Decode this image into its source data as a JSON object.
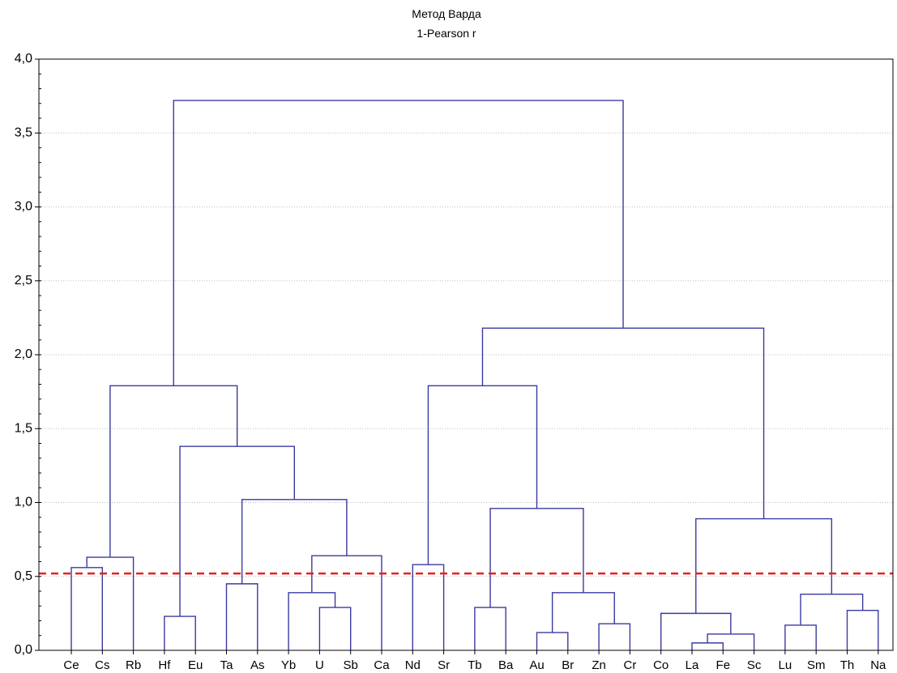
{
  "chart_data": {
    "type": "dendrogram",
    "title": "Метод Варда",
    "subtitle": "1-Pearson r",
    "xlabel": "",
    "ylabel": "",
    "ylim": [
      0,
      4.0
    ],
    "y_ticks": [
      "0,0",
      "0,5",
      "1,0",
      "1,5",
      "2,0",
      "2,5",
      "3,0",
      "3,5",
      "4,0"
    ],
    "y_tick_values": [
      0,
      0.5,
      1.0,
      1.5,
      2.0,
      2.5,
      3.0,
      3.5,
      4.0
    ],
    "grid": true,
    "leaves": [
      "Ce",
      "Cs",
      "Rb",
      "Hf",
      "Eu",
      "Ta",
      "As",
      "Yb",
      "U",
      "Sb",
      "Ca",
      "Nd",
      "Sr",
      "Tb",
      "Ba",
      "Au",
      "Br",
      "Zn",
      "Cr",
      "Co",
      "La",
      "Fe",
      "Sc",
      "Lu",
      "Sm",
      "Th",
      "Na"
    ],
    "merges": [
      {
        "left": "Ce",
        "right": "Cs",
        "height": 0.56
      },
      {
        "left": "m0",
        "right": "Rb",
        "height": 0.63
      },
      {
        "left": "Hf",
        "right": "Eu",
        "height": 0.23
      },
      {
        "left": "Ta",
        "right": "As",
        "height": 0.45
      },
      {
        "left": "U",
        "right": "Sb",
        "height": 0.29
      },
      {
        "left": "Yb",
        "right": "m4",
        "height": 0.39
      },
      {
        "left": "m5",
        "right": "Ca",
        "height": 0.64
      },
      {
        "left": "m3",
        "right": "m6",
        "height": 1.02
      },
      {
        "left": "m2",
        "right": "m7",
        "height": 1.38
      },
      {
        "left": "m1",
        "right": "m8",
        "height": 1.79
      },
      {
        "left": "Nd",
        "right": "Sr",
        "height": 0.58
      },
      {
        "left": "Tb",
        "right": "Ba",
        "height": 0.29
      },
      {
        "left": "Au",
        "right": "Br",
        "height": 0.12
      },
      {
        "left": "Zn",
        "right": "Cr",
        "height": 0.18
      },
      {
        "left": "m12",
        "right": "m13",
        "height": 0.39
      },
      {
        "left": "m11",
        "right": "m14",
        "height": 0.96
      },
      {
        "left": "m10",
        "right": "m15",
        "height": 1.79
      },
      {
        "left": "La",
        "right": "Fe",
        "height": 0.05
      },
      {
        "left": "m17",
        "right": "Sc",
        "height": 0.11
      },
      {
        "left": "Co",
        "right": "m18",
        "height": 0.25
      },
      {
        "left": "Lu",
        "right": "Sm",
        "height": 0.17
      },
      {
        "left": "Th",
        "right": "Na",
        "height": 0.27
      },
      {
        "left": "m20",
        "right": "m21",
        "height": 0.38
      },
      {
        "left": "m19",
        "right": "m22",
        "height": 0.89
      },
      {
        "left": "m16",
        "right": "m23",
        "height": 2.18
      },
      {
        "left": "m9",
        "right": "m24",
        "height": 3.72
      }
    ],
    "cut_line": {
      "value": 0.52,
      "color": "#e82020",
      "style": "dashed"
    },
    "colors": {
      "links": "#3a3aa0",
      "cut_line": "#e82020",
      "grid": "#bdbdbd"
    }
  }
}
